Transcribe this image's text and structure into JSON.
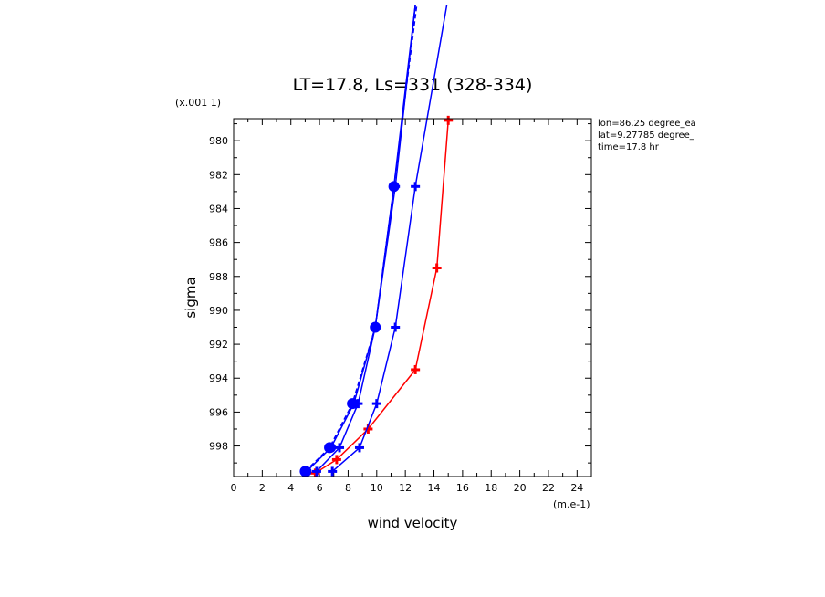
{
  "chart_data": {
    "type": "line",
    "title": "LT=17.8, Ls=331 (328-334)",
    "xlabel": "wind velocity",
    "ylabel": "sigma",
    "x_unit_label": "(m.e-1)",
    "y_unit_label": "(x.001 1)",
    "xlim": [
      0,
      25
    ],
    "ylim": [
      999.8,
      978.7
    ],
    "x_ticks": [
      "0",
      "2",
      "4",
      "6",
      "8",
      "10",
      "12",
      "14",
      "16",
      "18",
      "20",
      "22",
      "24"
    ],
    "y_ticks": [
      "980",
      "982",
      "984",
      "986",
      "988",
      "990",
      "992",
      "994",
      "996",
      "998"
    ],
    "info_lines": [
      "lon=86.25 degree_ea",
      "lat=9.27785 degree_",
      "time=17.8 hr"
    ],
    "series": [
      {
        "color": "#ff0000",
        "style": "solid",
        "marker": "plus",
        "x": [
          5.7,
          7.2,
          9.4,
          12.7,
          14.2,
          15.0
        ],
        "y": [
          999.6,
          998.8,
          997.0,
          993.5,
          987.5,
          978.8
        ]
      },
      {
        "color": "#0000ff",
        "style": "solid",
        "marker": "plus",
        "x": [
          6.9,
          8.8,
          10.0,
          11.3,
          12.7,
          14.9
        ],
        "y": [
          999.5,
          998.1,
          995.5,
          991.0,
          982.7,
          972.0
        ]
      },
      {
        "color": "#0000ff",
        "style": "solid",
        "marker": "circle-plus",
        "x": [
          5.1,
          6.8,
          8.4,
          9.9,
          11.2,
          12.7
        ],
        "y": [
          999.5,
          998.1,
          995.5,
          991.0,
          982.7,
          972.0
        ]
      },
      {
        "color": "#0000ff",
        "style": "solid",
        "marker": "plus",
        "x": [
          5.8,
          7.4,
          8.7,
          9.9,
          11.3,
          12.7
        ],
        "y": [
          999.5,
          998.1,
          995.5,
          991.0,
          982.7,
          972.0
        ]
      },
      {
        "color": "#0000ff",
        "style": "dashed",
        "marker": "circle",
        "x": [
          5.0,
          6.7,
          8.3,
          9.9,
          11.2,
          12.8
        ],
        "y": [
          999.5,
          998.1,
          995.5,
          991.0,
          982.7,
          972.0
        ]
      }
    ]
  }
}
